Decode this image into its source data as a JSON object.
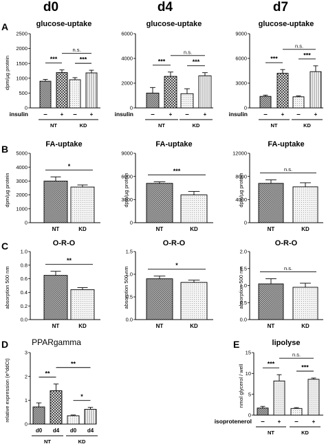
{
  "column_headers": [
    "d0",
    "d4",
    "d7"
  ],
  "panel_letters": [
    "A",
    "B",
    "C",
    "D",
    "E"
  ],
  "colors": {
    "nt_fill": "#7b7b7b",
    "kd_fill": "#e3e3e3",
    "crosshatch": "#444444",
    "axis": "#000000"
  },
  "chart_data": [
    {
      "id": "A-d0",
      "type": "bar",
      "title": "glucose-uptake",
      "ylabel": "dpm/µg protein",
      "ylim": [
        0,
        2500
      ],
      "yticks": [
        0,
        500,
        1000,
        1500,
        2000,
        2500
      ],
      "row_label": "insulin",
      "xsigns": [
        "–",
        "+",
        "–",
        "+"
      ],
      "groups": [
        "NT",
        "KD"
      ],
      "bars": [
        {
          "value": 900,
          "err": 60,
          "fill": "nt"
        },
        {
          "value": 1190,
          "err": 90,
          "fill": "nt-hatch"
        },
        {
          "value": 950,
          "err": 70,
          "fill": "kd"
        },
        {
          "value": 1180,
          "err": 90,
          "fill": "kd-hatch"
        }
      ],
      "sig": [
        {
          "from": 0,
          "to": 1,
          "label": "***",
          "level": 0
        },
        {
          "from": 2,
          "to": 3,
          "label": "***",
          "level": 0
        },
        {
          "from": 1,
          "to": 3,
          "label": "n.s.",
          "level": 1
        }
      ]
    },
    {
      "id": "A-d4",
      "type": "bar",
      "title": "glucose-uptake",
      "ylabel": "",
      "ylim": [
        0,
        6000
      ],
      "yticks": [
        0,
        2000,
        4000,
        6000
      ],
      "row_label": "insulin",
      "xsigns": [
        "–",
        "+",
        "–",
        "+"
      ],
      "groups": [
        "NT",
        "KD"
      ],
      "bars": [
        {
          "value": 1200,
          "err": 450,
          "fill": "nt"
        },
        {
          "value": 2550,
          "err": 350,
          "fill": "nt-hatch"
        },
        {
          "value": 1150,
          "err": 400,
          "fill": "kd"
        },
        {
          "value": 2600,
          "err": 250,
          "fill": "kd-hatch"
        }
      ],
      "sig": [
        {
          "from": 0,
          "to": 1,
          "label": "***",
          "level": 0
        },
        {
          "from": 2,
          "to": 3,
          "label": "***",
          "level": 0
        },
        {
          "from": 1,
          "to": 3,
          "label": "n.s.",
          "level": 1
        }
      ]
    },
    {
      "id": "A-d7",
      "type": "bar",
      "title": "glucose-uptake",
      "ylabel": "",
      "ylim": [
        0,
        9000
      ],
      "yticks": [
        0,
        3000,
        6000,
        9000
      ],
      "row_label": "insulin",
      "xsigns": [
        "–",
        "+",
        "–",
        "+"
      ],
      "groups": [
        "NT",
        "KD"
      ],
      "bars": [
        {
          "value": 1400,
          "err": 150,
          "fill": "nt"
        },
        {
          "value": 4200,
          "err": 450,
          "fill": "nt-hatch"
        },
        {
          "value": 1350,
          "err": 100,
          "fill": "kd"
        },
        {
          "value": 4400,
          "err": 700,
          "fill": "kd-hatch"
        }
      ],
      "sig": [
        {
          "from": 0,
          "to": 1,
          "label": "***",
          "level": 0
        },
        {
          "from": 2,
          "to": 3,
          "label": "***",
          "level": 0
        },
        {
          "from": 1,
          "to": 3,
          "label": "n.s.",
          "level": 1
        }
      ]
    },
    {
      "id": "B-d0",
      "type": "bar",
      "title": "FA-uptake",
      "ylabel": "dpm/µg protein",
      "ylim": [
        0,
        5000
      ],
      "yticks": [
        0,
        1000,
        2000,
        3000,
        4000,
        5000
      ],
      "categories": [
        "NT",
        "KD"
      ],
      "bars": [
        {
          "value": 3000,
          "err": 300,
          "fill": "nt"
        },
        {
          "value": 2570,
          "err": 150,
          "fill": "kd"
        }
      ],
      "sig": [
        {
          "from": 0,
          "to": 1,
          "label": "*",
          "level": 0
        }
      ]
    },
    {
      "id": "B-d4",
      "type": "bar",
      "title": "FA-uptake",
      "ylabel": "dpm/µg protein",
      "ylim": [
        0,
        9000
      ],
      "yticks": [
        0,
        3000,
        6000,
        9000
      ],
      "categories": [
        "NT",
        "KD"
      ],
      "bars": [
        {
          "value": 5100,
          "err": 200,
          "fill": "nt"
        },
        {
          "value": 3600,
          "err": 450,
          "fill": "kd"
        }
      ],
      "sig": [
        {
          "from": 0,
          "to": 1,
          "label": "***",
          "level": 0
        }
      ]
    },
    {
      "id": "B-d7",
      "type": "bar",
      "title": "FA-uptake",
      "ylabel": "dpm/µg protein",
      "ylim": [
        0,
        12000
      ],
      "yticks": [
        0,
        4000,
        8000,
        12000
      ],
      "categories": [
        "NT",
        "KD"
      ],
      "bars": [
        {
          "value": 6800,
          "err": 600,
          "fill": "nt"
        },
        {
          "value": 6200,
          "err": 700,
          "fill": "kd"
        }
      ],
      "sig": [
        {
          "from": 0,
          "to": 1,
          "label": "n.s.",
          "level": 0
        }
      ]
    },
    {
      "id": "C-d0",
      "type": "bar",
      "title": "O-R-O",
      "ylabel": "absorption 500 nm",
      "ylim": [
        0,
        1.0
      ],
      "yticks": [
        0.0,
        0.2,
        0.4,
        0.6,
        0.8,
        1.0
      ],
      "decimals": 1,
      "categories": [
        "NT",
        "KD"
      ],
      "bars": [
        {
          "value": 0.65,
          "err": 0.06,
          "fill": "nt"
        },
        {
          "value": 0.44,
          "err": 0.03,
          "fill": "kd"
        }
      ],
      "sig": [
        {
          "from": 0,
          "to": 1,
          "label": "**",
          "level": 0
        }
      ]
    },
    {
      "id": "C-d4",
      "type": "bar",
      "title": "O-R-O",
      "ylabel": "absorption 500 nm",
      "ylim": [
        0,
        1.5
      ],
      "yticks": [
        0.0,
        0.5,
        1.0,
        1.5
      ],
      "decimals": 1,
      "categories": [
        "NT",
        "KD"
      ],
      "bars": [
        {
          "value": 0.9,
          "err": 0.06,
          "fill": "nt"
        },
        {
          "value": 0.82,
          "err": 0.05,
          "fill": "kd"
        }
      ],
      "sig": [
        {
          "from": 0,
          "to": 1,
          "label": "*",
          "level": 0
        }
      ]
    },
    {
      "id": "C-d7",
      "type": "bar",
      "title": "O-R-O",
      "ylabel": "absorption 500 nm",
      "ylim": [
        0,
        2.0
      ],
      "yticks": [
        0.0,
        0.5,
        1.0,
        1.5,
        2.0
      ],
      "decimals": 1,
      "categories": [
        "NT",
        "KD"
      ],
      "bars": [
        {
          "value": 1.05,
          "err": 0.15,
          "fill": "nt"
        },
        {
          "value": 0.95,
          "err": 0.12,
          "fill": "kd"
        }
      ],
      "sig": [
        {
          "from": 0,
          "to": 1,
          "label": "n.s.",
          "level": 0
        }
      ]
    },
    {
      "id": "D",
      "type": "bar",
      "title": "PPARgamma",
      "ylabel": "relative expression (e^ddCt)",
      "ylim": [
        0,
        3
      ],
      "yticks": [
        0,
        1,
        2,
        3
      ],
      "xsigns": [
        "d0",
        "d4",
        "d0",
        "d4"
      ],
      "groups": [
        "NT",
        "KD"
      ],
      "bars": [
        {
          "value": 0.72,
          "err": 0.17,
          "fill": "nt"
        },
        {
          "value": 1.4,
          "err": 0.28,
          "fill": "nt-hatch"
        },
        {
          "value": 0.35,
          "err": 0.03,
          "fill": "kd"
        },
        {
          "value": 0.62,
          "err": 0.08,
          "fill": "kd-hatch"
        }
      ],
      "sig": [
        {
          "from": 0,
          "to": 1,
          "label": "**",
          "level": 0
        },
        {
          "from": 2,
          "to": 3,
          "label": "*",
          "level": 0
        },
        {
          "from": 1,
          "to": 3,
          "label": "**",
          "level": 1
        }
      ]
    },
    {
      "id": "E",
      "type": "bar",
      "title": "lipolyse",
      "ylabel": "nmol glycerol / well",
      "ylim": [
        0,
        15
      ],
      "yticks": [
        0,
        5,
        10,
        15
      ],
      "row_label": "isoprotenerol",
      "xsigns": [
        "–",
        "+",
        "–",
        "+"
      ],
      "groups": [
        "NT",
        "KD"
      ],
      "bars": [
        {
          "value": 1.7,
          "err": 0.4,
          "fill": "nt"
        },
        {
          "value": 8.2,
          "err": 1.5,
          "fill": "nt-light"
        },
        {
          "value": 1.6,
          "err": 0.2,
          "fill": "kd"
        },
        {
          "value": 8.6,
          "err": 0.3,
          "fill": "kd-light"
        }
      ],
      "sig": [
        {
          "from": 0,
          "to": 1,
          "label": "***",
          "level": 0
        },
        {
          "from": 2,
          "to": 3,
          "label": "***",
          "level": 0
        },
        {
          "from": 1,
          "to": 3,
          "label": "n.s.",
          "level": 1
        }
      ]
    }
  ]
}
